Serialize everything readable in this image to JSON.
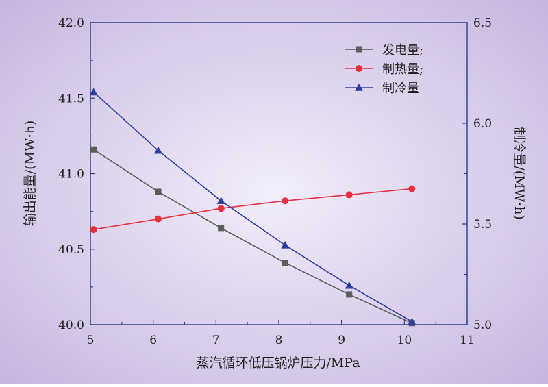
{
  "chart_data": {
    "type": "line",
    "title": "",
    "xlabel": "蒸汽循环低压锅炉压力/MPa",
    "ylabel_left": "输出能量/(MW·h)",
    "ylabel_right": "制冷量/(MW·h)",
    "xlim": [
      5,
      11
    ],
    "ylim_left": [
      40.0,
      42.0
    ],
    "ylim_right": [
      5.0,
      6.5
    ],
    "x_ticks": [
      "5",
      "6",
      "7",
      "8",
      "9",
      "10",
      "11"
    ],
    "y_left_ticks": [
      "40.0",
      "40.5",
      "41.0",
      "41.5",
      "42.0"
    ],
    "y_right_ticks": [
      "5.0",
      "5.5",
      "6.0",
      "6.5"
    ],
    "grid": false,
    "legend_position": "top-right",
    "background": {
      "inner": "#f2eefb",
      "outer": "#c5b5dd"
    },
    "axis_color": "#2b3a8f",
    "series": [
      {
        "name": "发电量;",
        "axis": "left",
        "marker": "square",
        "color": "#5c5c5c",
        "x": [
          5.05,
          6.08,
          7.08,
          8.1,
          9.12,
          10.12
        ],
        "values": [
          41.16,
          40.88,
          40.64,
          40.41,
          40.2,
          40.01
        ]
      },
      {
        "name": "制热量;",
        "axis": "left",
        "marker": "circle",
        "color": "#e8303f",
        "x": [
          5.05,
          6.08,
          7.08,
          8.1,
          9.12,
          10.12
        ],
        "values": [
          40.63,
          40.7,
          40.77,
          40.82,
          40.86,
          40.9
        ]
      },
      {
        "name": "制冷量",
        "axis": "right",
        "marker": "triangle",
        "color": "#2d3e9e",
        "x": [
          5.05,
          6.08,
          7.08,
          8.1,
          9.12,
          10.12
        ],
        "values": [
          6.155,
          5.865,
          5.615,
          5.395,
          5.195,
          5.015
        ]
      }
    ]
  }
}
